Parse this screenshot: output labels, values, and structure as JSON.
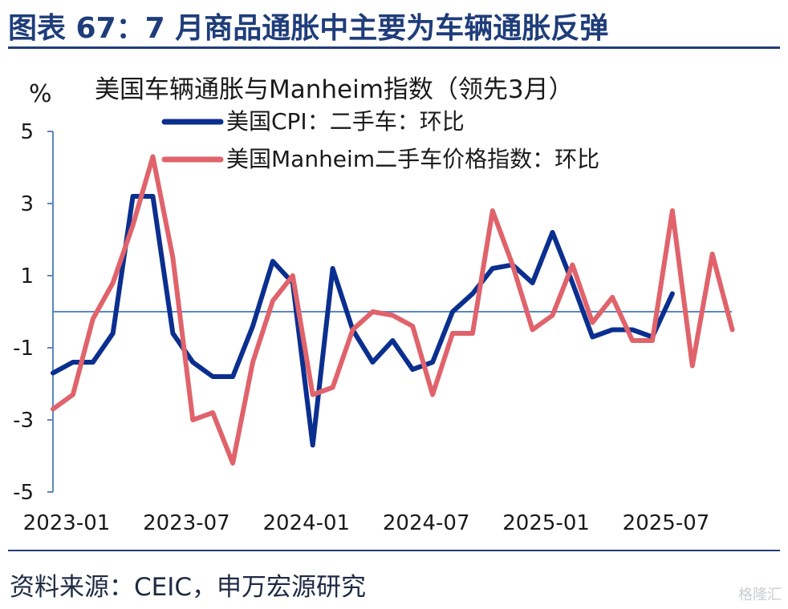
{
  "header": {
    "title": "图表 67：7 月商品通胀中主要为车辆通胀反弹"
  },
  "footer": {
    "source": "资料来源：CEIC，申万宏源研究"
  },
  "watermark": "格隆汇",
  "colors": {
    "cpi": "#0b2f8f",
    "manheim": "#e0636b",
    "axis": "#5b87c2",
    "header": "#1f3d7a"
  },
  "chart_data": {
    "type": "line",
    "title": "美国车辆通胀与Manheim指数（领先3月）",
    "ylabel": "%",
    "xlabel": "",
    "ylim": [
      -5,
      5
    ],
    "yticks": [
      5,
      3,
      1,
      -1,
      -3,
      -5
    ],
    "x_tick_labels": [
      "2023-01",
      "2023-07",
      "2024-01",
      "2024-07",
      "2025-01",
      "2025-07"
    ],
    "x": [
      "2023-01",
      "2023-02",
      "2023-03",
      "2023-04",
      "2023-05",
      "2023-06",
      "2023-07",
      "2023-08",
      "2023-09",
      "2023-10",
      "2023-11",
      "2023-12",
      "2024-01",
      "2024-02",
      "2024-03",
      "2024-04",
      "2024-05",
      "2024-06",
      "2024-07",
      "2024-08",
      "2024-09",
      "2024-10",
      "2024-11",
      "2024-12",
      "2025-01",
      "2025-02",
      "2025-03",
      "2025-04",
      "2025-05",
      "2025-06",
      "2025-07",
      "2025-08",
      "2025-09",
      "2025-10",
      "2025-11"
    ],
    "grid": false,
    "legend_position": "top",
    "series": [
      {
        "name": "美国CPI：二手车：环比",
        "color": "#0b2f8f",
        "values": [
          -1.7,
          -1.4,
          -1.4,
          -0.6,
          3.2,
          3.2,
          -0.6,
          -1.4,
          -1.8,
          -1.8,
          -0.4,
          1.4,
          0.8,
          -3.7,
          1.2,
          -0.5,
          -1.4,
          -0.8,
          -1.6,
          -1.4,
          0.0,
          0.5,
          1.2,
          1.3,
          0.8,
          2.2,
          0.8,
          -0.7,
          -0.5,
          -0.5,
          -0.7,
          0.5,
          null,
          null,
          null
        ]
      },
      {
        "name": "美国Manheim二手车价格指数：环比",
        "color": "#e0636b",
        "values": [
          -2.7,
          -2.3,
          -0.2,
          0.8,
          2.4,
          4.3,
          1.5,
          -3.0,
          -2.8,
          -4.2,
          -1.4,
          0.3,
          1.0,
          -2.3,
          -2.1,
          -0.5,
          0.0,
          -0.1,
          -0.4,
          -2.3,
          -0.6,
          -0.6,
          2.8,
          1.3,
          -0.5,
          -0.1,
          1.3,
          -0.3,
          0.4,
          -0.8,
          -0.8,
          2.8,
          -1.5,
          1.6,
          -0.5
        ]
      }
    ]
  }
}
